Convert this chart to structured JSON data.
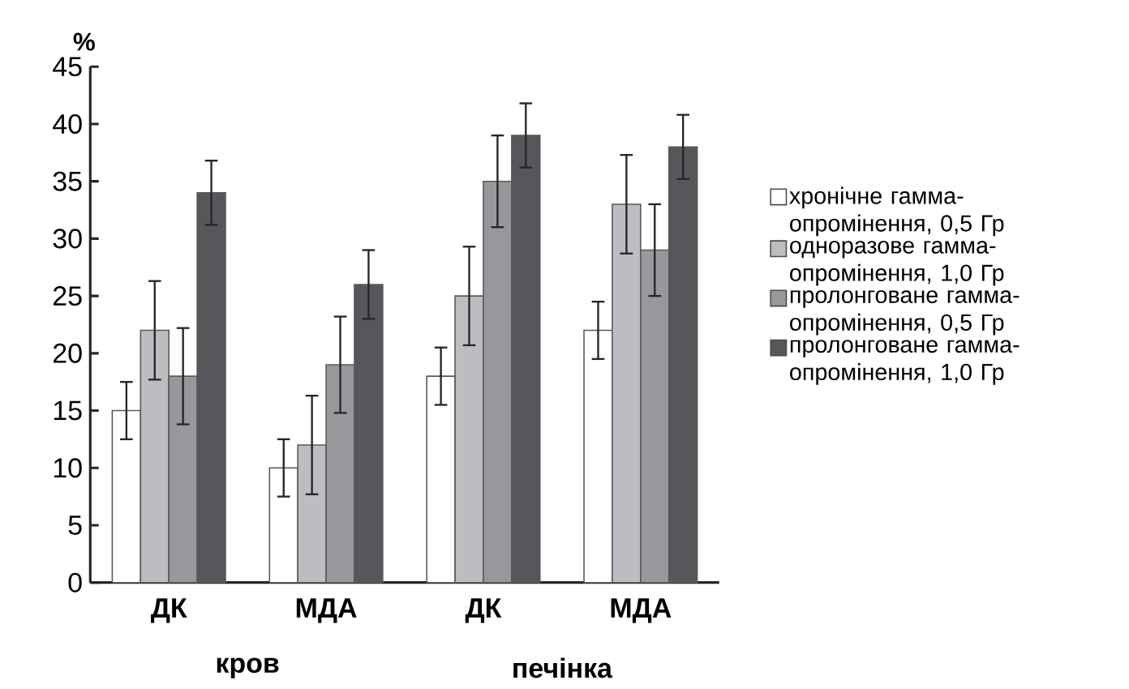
{
  "chart_data": {
    "type": "bar",
    "ylabel": "%",
    "categories": [
      "ДК",
      "МДА",
      "ДК",
      "МДА"
    ],
    "series": [
      {
        "name": "хронічне гамма-опромінення, 0,5 Гр",
        "color": "#ffffff",
        "values": [
          15,
          10,
          18,
          22
        ],
        "errors": [
          2.5,
          2.5,
          2.5,
          2.5
        ]
      },
      {
        "name": "одноразове гамма-опромінення, 1,0 Гр",
        "color": "#bcbdc1",
        "values": [
          22,
          12,
          25,
          33
        ],
        "errors": [
          4.3,
          4.3,
          4.3,
          4.3
        ]
      },
      {
        "name": "пролонговане гамма-опромінення, 0,5 Гр",
        "color": "#97989c",
        "values": [
          18,
          19,
          35,
          29
        ],
        "errors": [
          4.2,
          4.2,
          4,
          4
        ]
      },
      {
        "name": "пролонговане гамма-опромінення, 1,0 Гр",
        "color": "#56575a",
        "values": [
          34,
          26,
          39,
          38
        ],
        "errors": [
          2.8,
          3,
          2.8,
          2.8
        ]
      }
    ],
    "annotations": [
      "кров",
      "печінка"
    ],
    "ylim": [
      0,
      45
    ],
    "yticks": [
      0,
      5,
      10,
      15,
      20,
      25,
      30,
      35,
      40,
      45
    ],
    "legend": "right"
  }
}
